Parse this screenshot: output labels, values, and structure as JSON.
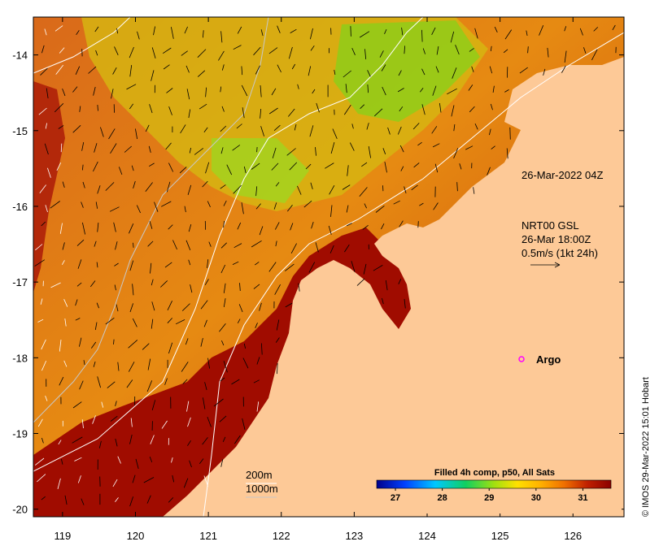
{
  "map": {
    "longitude_ticks": [
      "119",
      "120",
      "121",
      "122",
      "123",
      "124",
      "125",
      "126"
    ],
    "latitude_ticks": [
      "-14",
      "-15",
      "-16",
      "-17",
      "-18",
      "-19",
      "-20"
    ],
    "lon_range": [
      118.6,
      126.7
    ],
    "lat_range": [
      -20.1,
      -13.5
    ],
    "colors": {
      "land": "#fdc997",
      "sst_warm": "#a00c00",
      "sst_mid": "#e07a0e",
      "sst_cool": "#a6e20c"
    }
  },
  "annotations": {
    "timestamp": "26-Mar-2022 04Z",
    "current_source": "NRT00 GSL",
    "current_time": "26-Mar 18:00Z",
    "current_scale": "0.5m/s (1kt 24h)"
  },
  "legend": {
    "argo_label": "Argo",
    "argo_color": "#ff00ff",
    "depth_200": "200m",
    "depth_1000": "1000m"
  },
  "colorbar": {
    "title": "Filled 4h comp, p50, All Sats",
    "ticks": [
      "27",
      "28",
      "29",
      "30",
      "31"
    ],
    "range": [
      26.6,
      31.6
    ]
  },
  "copyright": "© IMOS 29-Mar-2022 15:01 Hobart"
}
